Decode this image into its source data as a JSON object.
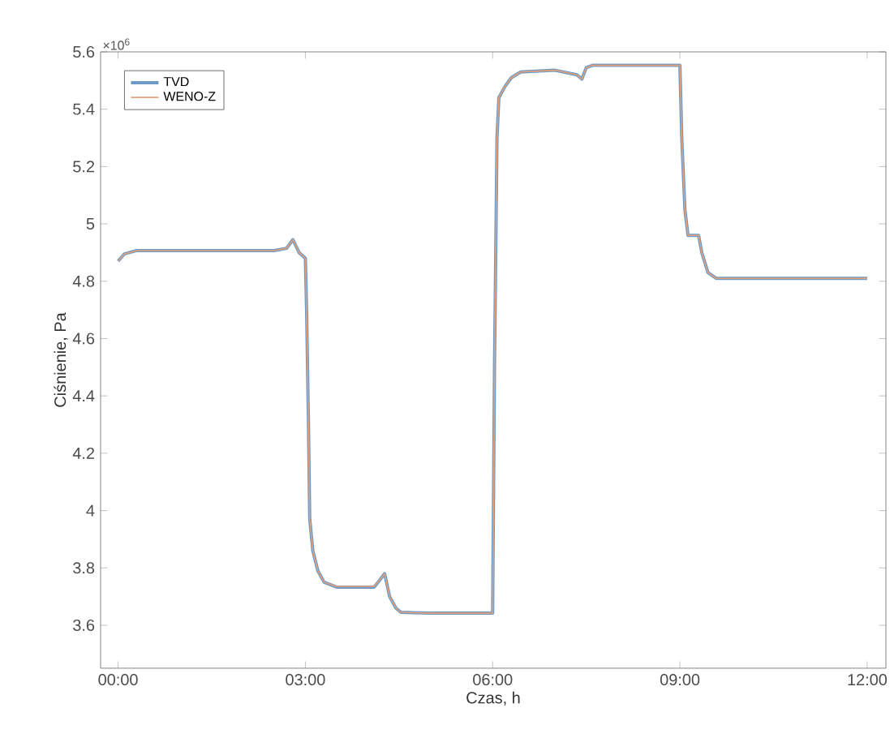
{
  "chart_data": {
    "type": "line",
    "xlabel": "Czas, h",
    "ylabel": "Ciśnienie, Pa",
    "annotations": [
      "×10$^{6}$"
    ],
    "xlim": [
      -0.28,
      12.3
    ],
    "ylim": [
      3.45,
      5.6
    ],
    "xticks": [
      {
        "value": 0,
        "label": "00:00"
      },
      {
        "value": 3,
        "label": "03:00"
      },
      {
        "value": 6,
        "label": "06:00"
      },
      {
        "value": 9,
        "label": "09:00"
      },
      {
        "value": 12,
        "label": "12:00"
      }
    ],
    "yticks": [
      3.6,
      3.8,
      4,
      4.2,
      4.4,
      4.6,
      4.8,
      5,
      5.2,
      5.4,
      5.6
    ],
    "legend": "top left",
    "x": [
      0.0,
      0.1,
      0.3,
      2.5,
      2.7,
      2.8,
      2.9,
      3.0,
      3.02,
      3.05,
      3.07,
      3.12,
      3.2,
      3.3,
      3.5,
      4.1,
      4.2,
      4.27,
      4.35,
      4.45,
      4.53,
      5.0,
      6.0,
      6.03,
      6.07,
      6.1,
      6.2,
      6.3,
      6.45,
      7.0,
      7.35,
      7.43,
      7.5,
      7.6,
      9.0,
      9.03,
      9.08,
      9.13,
      9.3,
      9.35,
      9.45,
      9.58,
      10.0,
      12.0
    ],
    "series": [
      {
        "name": "TVD",
        "color": "#6e9bc5",
        "values": [
          4.87,
          4.895,
          4.907,
          4.907,
          4.915,
          4.945,
          4.9,
          4.88,
          4.7,
          4.3,
          3.97,
          3.86,
          3.79,
          3.75,
          3.733,
          3.733,
          3.76,
          3.78,
          3.7,
          3.66,
          3.645,
          3.642,
          3.642,
          4.5,
          5.3,
          5.44,
          5.48,
          5.51,
          5.53,
          5.536,
          5.52,
          5.505,
          5.545,
          5.553,
          5.553,
          5.3,
          5.05,
          4.96,
          4.96,
          4.9,
          4.83,
          4.81,
          4.81,
          4.81
        ]
      },
      {
        "name": "WENO-Z",
        "color": "#e3a07a",
        "values": [
          4.87,
          4.895,
          4.907,
          4.907,
          4.915,
          4.945,
          4.9,
          4.88,
          4.7,
          4.3,
          3.97,
          3.86,
          3.79,
          3.75,
          3.735,
          3.735,
          3.76,
          3.78,
          3.7,
          3.66,
          3.645,
          3.642,
          3.642,
          4.5,
          5.3,
          5.44,
          5.48,
          5.51,
          5.53,
          5.536,
          5.52,
          5.505,
          5.545,
          5.553,
          5.553,
          5.3,
          5.05,
          4.96,
          4.96,
          4.9,
          4.83,
          4.81,
          4.81,
          4.81
        ]
      }
    ]
  }
}
